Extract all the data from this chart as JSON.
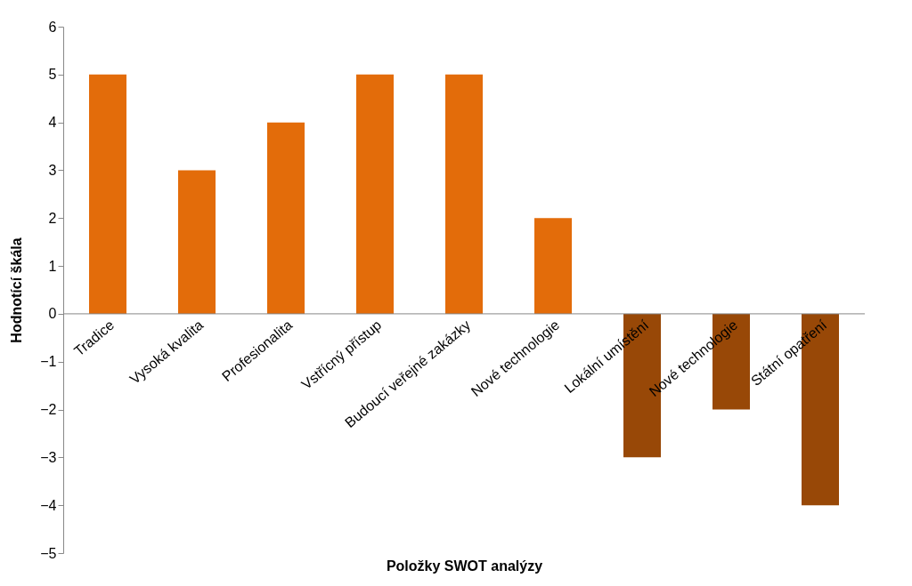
{
  "chart_data": {
    "type": "bar",
    "xlabel": "Položky SWOT analýzy",
    "ylabel": "Hodnotící škála",
    "categories": [
      "Tradice",
      "Vysoká kvalita",
      "Profesionalita",
      "Vstřícný přístup",
      "Budoucí veřejné zakázky",
      "Nové technologie",
      "Lokální umístění",
      "Nové technologie",
      "Státní opatření"
    ],
    "values": [
      5,
      3,
      4,
      5,
      5,
      2,
      -3,
      -2,
      -4
    ],
    "colors": [
      "#e36c0a",
      "#e36c0a",
      "#e36c0a",
      "#e36c0a",
      "#e36c0a",
      "#e36c0a",
      "#984807",
      "#984807",
      "#984807"
    ],
    "ylim": [
      -5,
      6
    ],
    "yticks": [
      -5,
      -4,
      -3,
      -2,
      -1,
      0,
      1,
      2,
      3,
      4,
      5,
      6
    ],
    "grid": false
  }
}
